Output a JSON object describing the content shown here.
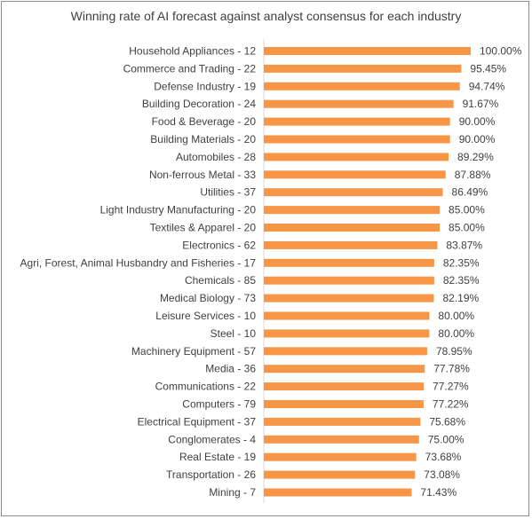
{
  "chart_data": {
    "type": "bar",
    "orientation": "horizontal",
    "title": "Winning rate of AI forecast against analyst consensus for each industry",
    "xlabel": "",
    "ylabel": "",
    "xlim": [
      0,
      100
    ],
    "grid": false,
    "legend": "none",
    "bar_color": "#F79646",
    "categories": [
      "Household Appliances - 12",
      "Commerce and Trading - 22",
      "Defense Industry - 19",
      "Building Decoration - 24",
      "Food & Beverage - 20",
      "Building Materials - 20",
      "Automobiles - 28",
      "Non-ferrous Metal - 33",
      "Utilities - 37",
      "Light Industry Manufacturing - 20",
      "Textiles & Apparel - 20",
      "Electronics - 62",
      "Agri, Forest, Animal Husbandry and Fisheries - 17",
      "Chemicals - 85",
      "Medical Biology - 73",
      "Leisure Services - 10",
      "Steel - 10",
      "Machinery Equipment - 57",
      "Media - 36",
      "Communications - 22",
      "Computers - 79",
      "Electrical Equipment - 37",
      "Conglomerates - 4",
      "Real Estate - 19",
      "Transportation - 26",
      "Mining - 7"
    ],
    "values": [
      100.0,
      95.45,
      94.74,
      91.67,
      90.0,
      90.0,
      89.29,
      87.88,
      86.49,
      85.0,
      85.0,
      83.87,
      82.35,
      82.35,
      82.19,
      80.0,
      80.0,
      78.95,
      77.78,
      77.27,
      77.22,
      75.68,
      75.0,
      73.68,
      73.08,
      71.43
    ],
    "data_labels": [
      "100.00%",
      "95.45%",
      "94.74%",
      "91.67%",
      "90.00%",
      "90.00%",
      "89.29%",
      "87.88%",
      "86.49%",
      "85.00%",
      "85.00%",
      "83.87%",
      "82.35%",
      "82.35%",
      "82.19%",
      "80.00%",
      "80.00%",
      "78.95%",
      "77.78%",
      "77.27%",
      "77.22%",
      "75.68%",
      "75.00%",
      "73.68%",
      "73.08%",
      "71.43%"
    ]
  }
}
